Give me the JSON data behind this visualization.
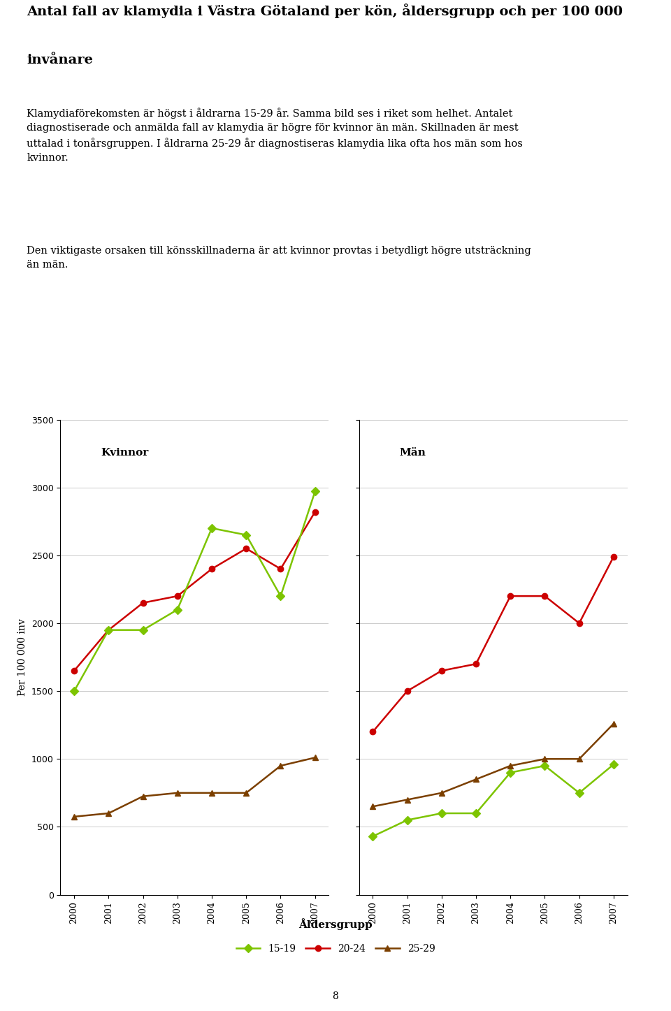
{
  "title_line1": "Antal fall av klamydia i Västra Götaland per kön, åldersgrupp och per 100 000",
  "title_line2": "invånare",
  "paragraph1": "Klamydiaförekomsten är högst i åldrarna 15-29 år. Samma bild ses i riket som helhet. Antalet\ndiagnostiserade och anmälda fall av klamydia är högre för kvinnor än män. Skillnaden är mest\nuttalad i tonårsgruppen. I åldrarna 25-29 år diagnostiseras klamydia lika ofta hos män som hos\nkvinnor.",
  "paragraph2": "Den viktigaste orsaken till könsskillnaderna är att kvinnor provtas i betydligt högre utsträckning\nän män.",
  "years": [
    2000,
    2001,
    2002,
    2003,
    2004,
    2005,
    2006,
    2007
  ],
  "kvinnor": {
    "age_15_19": [
      1500,
      1950,
      1950,
      2100,
      2700,
      2650,
      2200,
      2970
    ],
    "age_20_24": [
      1650,
      1950,
      2150,
      2200,
      2400,
      2550,
      2400,
      2820
    ],
    "age_25_29": [
      575,
      600,
      725,
      750,
      750,
      750,
      950,
      1010
    ]
  },
  "man": {
    "age_15_19": [
      430,
      550,
      600,
      600,
      900,
      950,
      750,
      960
    ],
    "age_20_24": [
      1200,
      1500,
      1650,
      1700,
      2200,
      2200,
      2000,
      2490
    ],
    "age_25_29": [
      650,
      700,
      750,
      850,
      950,
      1000,
      1000,
      1260
    ]
  },
  "color_15_19": "#7DC400",
  "color_20_24": "#CC0000",
  "color_25_29": "#7B3F00",
  "ylim": [
    0,
    3500
  ],
  "yticks": [
    0,
    500,
    1000,
    1500,
    2000,
    2500,
    3000,
    3500
  ],
  "ylabel": "Per 100 000 inv",
  "xlabel": "Åldersgrupp",
  "label_kvinnor": "Kvinnor",
  "label_man": "Män",
  "legend_15_19": "15-19",
  "legend_20_24": "20-24",
  "legend_25_29": "25-29",
  "page_number": "8"
}
